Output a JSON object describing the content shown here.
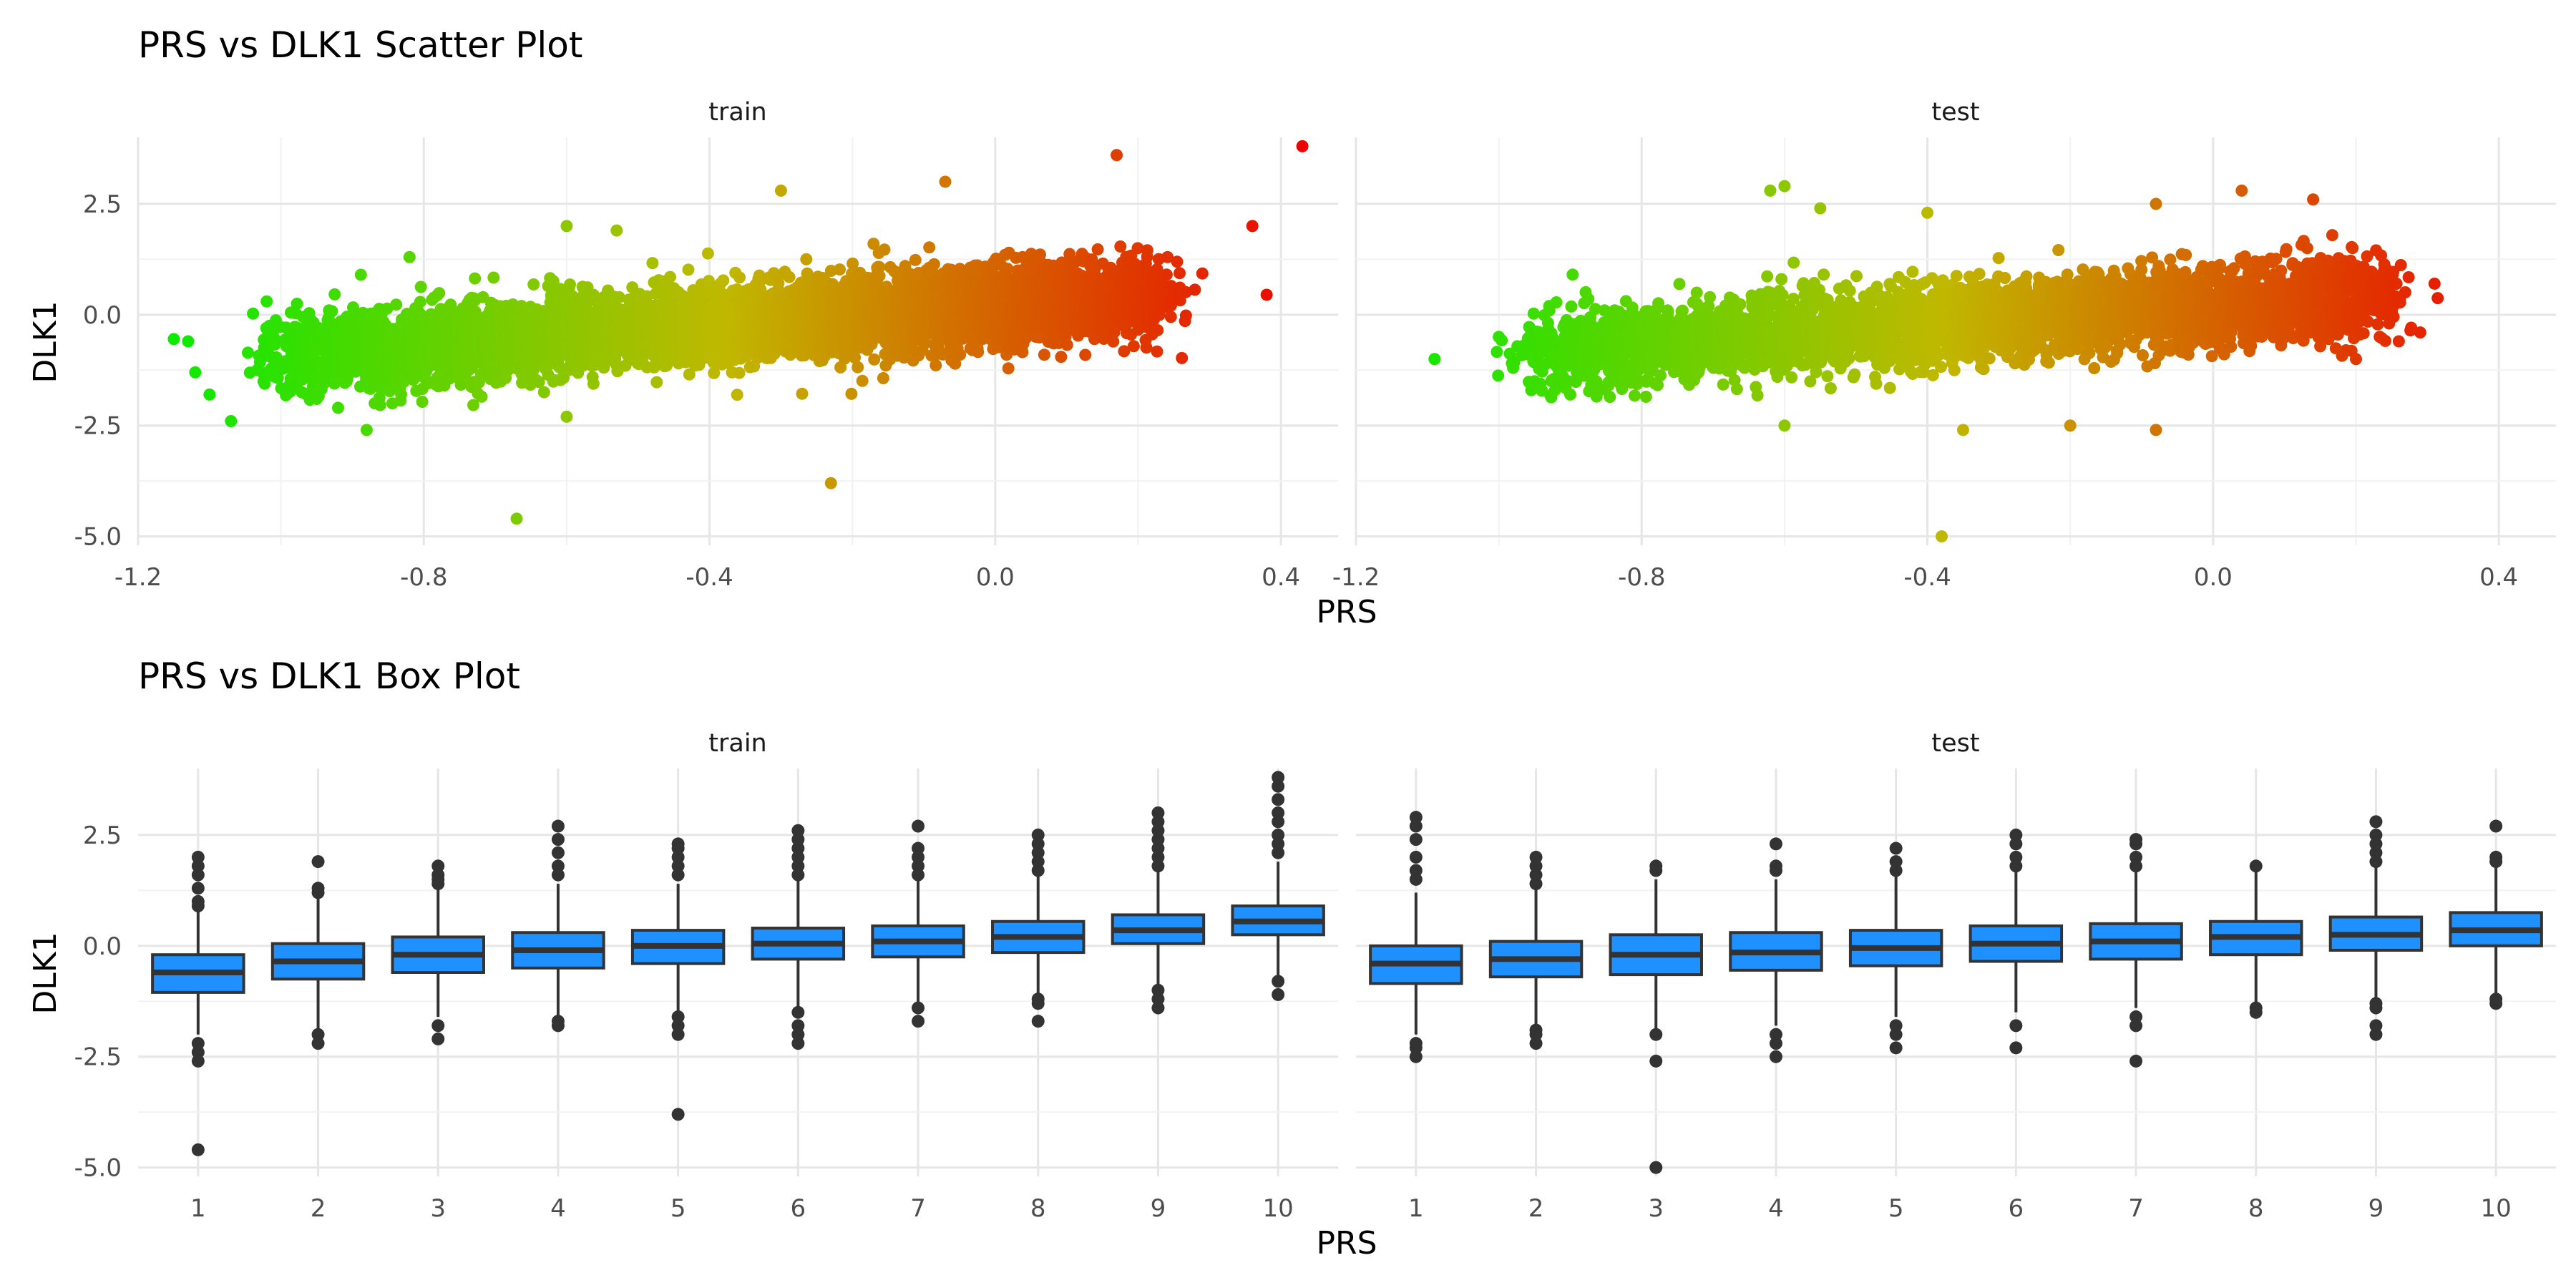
{
  "figure": {
    "xlabel": "PRS",
    "ylabel": "DLK1"
  },
  "chart_data": [
    {
      "type": "scatter",
      "title": "PRS vs DLK1 Scatter Plot",
      "xlabel": "PRS",
      "ylabel": "DLK1",
      "facets": [
        "train",
        "test"
      ],
      "xlim": [
        -1.2,
        0.48
      ],
      "ylim": [
        -5.2,
        4.0
      ],
      "x_ticks": [
        -1.2,
        -0.8,
        -0.4,
        0.0,
        0.4
      ],
      "x_tick_labels": [
        "-1.2",
        "-0.8",
        "-0.4",
        "0.0",
        "0.4"
      ],
      "y_ticks": [
        2.5,
        0.0,
        -2.5,
        -5.0
      ],
      "y_tick_labels": [
        "2.5",
        "0.0",
        "-2.5",
        "-5.0"
      ],
      "grid": true,
      "color_scale": {
        "low": "#00ee00",
        "mid": "#c0b800",
        "high": "#ee0000"
      },
      "trend": {
        "slope": 2.0,
        "intercept": 0.2,
        "spread": 0.75
      },
      "panels": [
        {
          "facet": "train",
          "x_range": [
            -1.0,
            0.22
          ],
          "outliers": [
            {
              "x": 0.43,
              "y": 3.8
            },
            {
              "x": 0.38,
              "y": 0.45
            },
            {
              "x": 0.36,
              "y": 2.0
            },
            {
              "x": -1.15,
              "y": -0.55
            },
            {
              "x": -1.13,
              "y": -0.6
            },
            {
              "x": -1.12,
              "y": -1.3
            },
            {
              "x": -1.1,
              "y": -1.8
            },
            {
              "x": -1.07,
              "y": -2.4
            },
            {
              "x": -1.02,
              "y": 0.3
            },
            {
              "x": -0.92,
              "y": -2.1
            },
            {
              "x": -0.88,
              "y": -2.6
            },
            {
              "x": -0.82,
              "y": 1.3
            },
            {
              "x": -0.6,
              "y": 2.0
            },
            {
              "x": -0.53,
              "y": 1.9
            },
            {
              "x": -0.3,
              "y": 2.8
            },
            {
              "x": -0.07,
              "y": 3.0
            },
            {
              "x": 0.17,
              "y": 3.6
            },
            {
              "x": -0.67,
              "y": -4.6
            },
            {
              "x": -0.23,
              "y": -3.8
            },
            {
              "x": -0.6,
              "y": -2.3
            },
            {
              "x": -0.95,
              "y": -1.9
            }
          ]
        },
        {
          "facet": "test",
          "x_range": [
            -0.95,
            0.24
          ],
          "outliers": [
            {
              "x": 0.31,
              "y": 0.7
            },
            {
              "x": 0.29,
              "y": -0.4
            },
            {
              "x": 0.26,
              "y": -0.6
            },
            {
              "x": 0.2,
              "y": -1.0
            },
            {
              "x": -1.09,
              "y": -1.0
            },
            {
              "x": -1.0,
              "y": -0.5
            },
            {
              "x": -0.98,
              "y": -1.2
            },
            {
              "x": -0.95,
              "y": -1.5
            },
            {
              "x": -0.9,
              "y": -1.8
            },
            {
              "x": -0.62,
              "y": 2.8
            },
            {
              "x": -0.6,
              "y": 2.9
            },
            {
              "x": -0.55,
              "y": 2.4
            },
            {
              "x": -0.4,
              "y": 2.3
            },
            {
              "x": -0.08,
              "y": 2.5
            },
            {
              "x": 0.04,
              "y": 2.8
            },
            {
              "x": 0.14,
              "y": 2.6
            },
            {
              "x": -0.38,
              "y": -5.0
            },
            {
              "x": -0.08,
              "y": -2.6
            },
            {
              "x": -0.6,
              "y": -2.5
            },
            {
              "x": -0.35,
              "y": -2.6
            },
            {
              "x": -0.2,
              "y": -2.5
            }
          ]
        }
      ]
    },
    {
      "type": "box",
      "title": "PRS vs DLK1 Box Plot",
      "xlabel": "PRS",
      "ylabel": "DLK1",
      "facets": [
        "train",
        "test"
      ],
      "categories": [
        "1",
        "2",
        "3",
        "4",
        "5",
        "6",
        "7",
        "8",
        "9",
        "10"
      ],
      "ylim": [
        -5.2,
        4.0
      ],
      "y_ticks": [
        2.5,
        0.0,
        -2.5,
        -5.0
      ],
      "y_tick_labels": [
        "2.5",
        "0.0",
        "-2.5",
        "-5.0"
      ],
      "box_color": "#1e90ff",
      "outline_color": "#333333",
      "grid": true,
      "panels": [
        {
          "facet": "train",
          "boxes": [
            {
              "q1": -1.05,
              "median": -0.6,
              "q3": -0.2,
              "lo": -2.0,
              "hi": 0.8
            },
            {
              "q1": -0.75,
              "median": -0.35,
              "q3": 0.05,
              "lo": -1.9,
              "hi": 1.1
            },
            {
              "q1": -0.6,
              "median": -0.2,
              "q3": 0.2,
              "lo": -1.6,
              "hi": 1.3
            },
            {
              "q1": -0.5,
              "median": -0.1,
              "q3": 0.3,
              "lo": -1.6,
              "hi": 1.4
            },
            {
              "q1": -0.4,
              "median": 0.0,
              "q3": 0.35,
              "lo": -1.5,
              "hi": 1.4
            },
            {
              "q1": -0.3,
              "median": 0.05,
              "q3": 0.4,
              "lo": -1.4,
              "hi": 1.5
            },
            {
              "q1": -0.25,
              "median": 0.1,
              "q3": 0.45,
              "lo": -1.3,
              "hi": 1.5
            },
            {
              "q1": -0.15,
              "median": 0.2,
              "q3": 0.55,
              "lo": -1.1,
              "hi": 1.6
            },
            {
              "q1": 0.05,
              "median": 0.35,
              "q3": 0.7,
              "lo": -1.0,
              "hi": 1.7
            },
            {
              "q1": 0.25,
              "median": 0.55,
              "q3": 0.9,
              "lo": -0.7,
              "hi": 1.9
            }
          ],
          "outliers": [
            [
              -4.6,
              -2.6,
              -2.4,
              -2.2,
              0.9,
              1.0,
              1.3,
              1.6,
              1.8,
              2.0
            ],
            [
              -2.2,
              -2.0,
              1.2,
              1.3,
              1.9
            ],
            [
              -2.1,
              -1.8,
              1.4,
              1.5,
              1.6,
              1.8
            ],
            [
              -1.8,
              -1.7,
              1.6,
              1.8,
              2.1,
              2.4,
              2.7
            ],
            [
              -3.8,
              -2.0,
              -1.8,
              -1.6,
              1.6,
              1.8,
              2.0,
              2.2,
              2.3
            ],
            [
              -2.2,
              -2.0,
              -1.8,
              -1.5,
              1.6,
              1.8,
              2.0,
              2.2,
              2.4,
              2.6
            ],
            [
              -1.7,
              -1.4,
              1.6,
              1.8,
              2.0,
              2.2,
              2.7
            ],
            [
              -1.7,
              -1.3,
              -1.2,
              1.7,
              1.9,
              2.1,
              2.3,
              2.5
            ],
            [
              -1.4,
              -1.2,
              -1.0,
              1.8,
              2.0,
              2.2,
              2.4,
              2.6,
              2.8,
              3.0
            ],
            [
              -1.1,
              -0.8,
              2.1,
              2.3,
              2.5,
              2.8,
              3.0,
              3.3,
              3.6,
              3.8
            ]
          ]
        },
        {
          "facet": "test",
          "boxes": [
            {
              "q1": -0.85,
              "median": -0.4,
              "q3": 0.0,
              "lo": -2.0,
              "hi": 1.2
            },
            {
              "q1": -0.7,
              "median": -0.3,
              "q3": 0.1,
              "lo": -1.8,
              "hi": 1.3
            },
            {
              "q1": -0.65,
              "median": -0.2,
              "q3": 0.25,
              "lo": -1.9,
              "hi": 1.5
            },
            {
              "q1": -0.55,
              "median": -0.15,
              "q3": 0.3,
              "lo": -1.8,
              "hi": 1.5
            },
            {
              "q1": -0.45,
              "median": -0.05,
              "q3": 0.35,
              "lo": -1.6,
              "hi": 1.6
            },
            {
              "q1": -0.35,
              "median": 0.05,
              "q3": 0.45,
              "lo": -1.5,
              "hi": 1.7
            },
            {
              "q1": -0.3,
              "median": 0.1,
              "q3": 0.5,
              "lo": -1.4,
              "hi": 1.7
            },
            {
              "q1": -0.2,
              "median": 0.2,
              "q3": 0.55,
              "lo": -1.3,
              "hi": 1.7
            },
            {
              "q1": -0.1,
              "median": 0.25,
              "q3": 0.65,
              "lo": -1.2,
              "hi": 1.8
            },
            {
              "q1": 0.0,
              "median": 0.35,
              "q3": 0.75,
              "lo": -1.1,
              "hi": 1.8
            }
          ],
          "outliers": [
            [
              -2.5,
              -2.3,
              -2.2,
              1.5,
              1.7,
              2.0,
              2.4,
              2.7,
              2.9
            ],
            [
              -2.2,
              -2.0,
              -1.9,
              1.4,
              1.6,
              1.8,
              2.0
            ],
            [
              -5.0,
              -2.6,
              -2.0,
              1.7,
              1.8
            ],
            [
              -2.5,
              -2.2,
              -2.0,
              1.7,
              1.8,
              2.3
            ],
            [
              -2.3,
              -2.0,
              -1.8,
              1.7,
              1.9,
              2.2
            ],
            [
              -2.3,
              -1.8,
              1.8,
              2.0,
              2.3,
              2.5
            ],
            [
              -2.6,
              -1.8,
              -1.6,
              1.8,
              2.0,
              2.3,
              2.4
            ],
            [
              -1.5,
              -1.4,
              1.8
            ],
            [
              -2.0,
              -1.8,
              -1.4,
              -1.3,
              1.9,
              2.1,
              2.3,
              2.5,
              2.8
            ],
            [
              -1.3,
              -1.2,
              1.9,
              2.0,
              2.7
            ]
          ]
        }
      ]
    }
  ]
}
